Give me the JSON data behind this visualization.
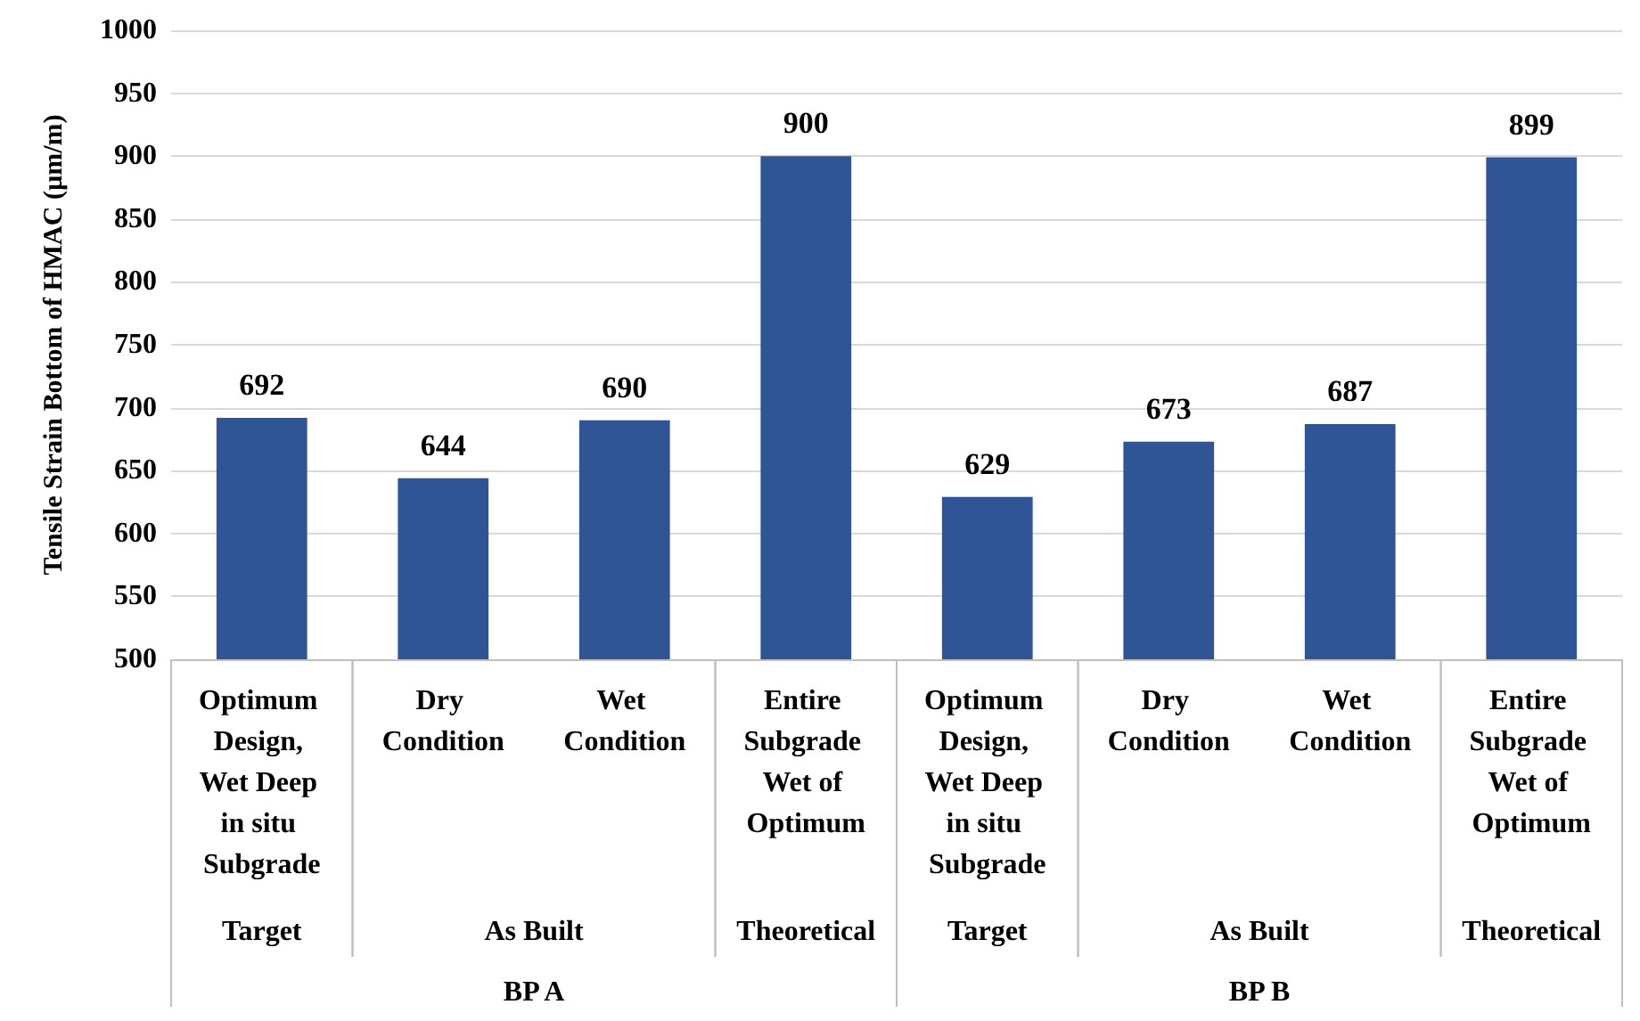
{
  "chart_data": {
    "type": "bar",
    "ylabel": "Tensile Strain Bottom of HMAC (µm/m)",
    "categories": [
      "Optimum Design, Wet Deep in situ Subgrade",
      "Dry Condition",
      "Wet Condition",
      "Entire Subgrade Wet of Optimum",
      "Optimum Design, Wet Deep in situ Subgrade",
      "Dry Condition",
      "Wet Condition",
      "Entire Subgrade Wet of Optimum"
    ],
    "values": [
      692,
      644,
      690,
      900,
      629,
      673,
      687,
      899
    ],
    "color": "#2f5597",
    "ylim": [
      500,
      1000
    ],
    "yticks": [
      500,
      550,
      600,
      650,
      700,
      750,
      800,
      850,
      900,
      950,
      1000
    ],
    "grid": "y",
    "data_labels": true,
    "annotations": [
      "Target",
      "As Built",
      "Theoretical",
      "Target",
      "As Built",
      "Theoretical",
      "BP A",
      "BP B"
    ]
  }
}
